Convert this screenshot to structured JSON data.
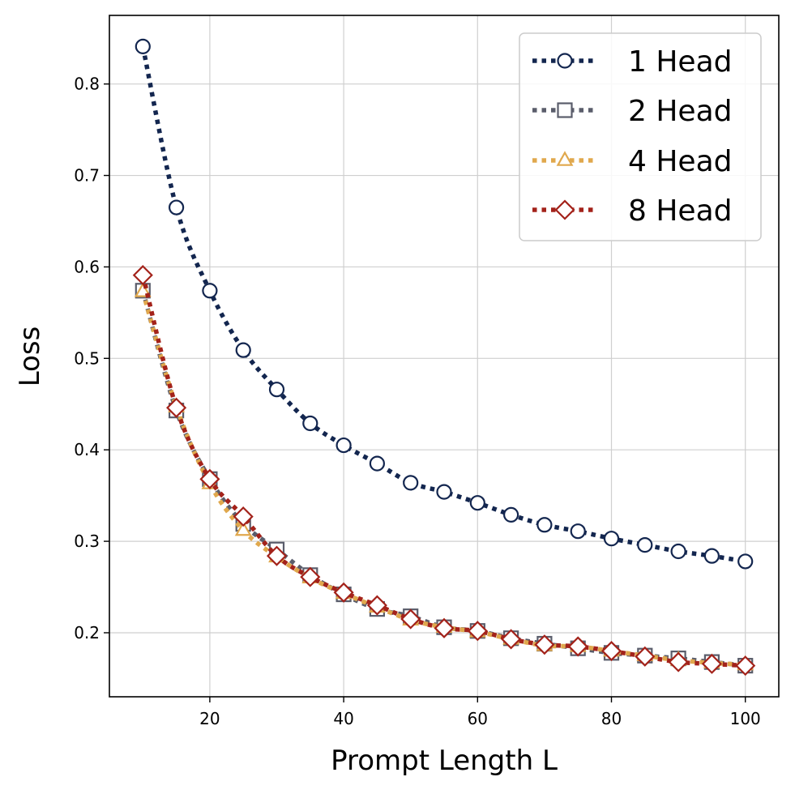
{
  "chart_data": {
    "type": "line",
    "xlabel": "Prompt Length L",
    "ylabel": "Loss",
    "xlim": [
      5,
      105
    ],
    "ylim": [
      0.13,
      0.875
    ],
    "xticks": [
      20,
      40,
      60,
      80,
      100
    ],
    "yticks": [
      0.2,
      0.3,
      0.4,
      0.5,
      0.6,
      0.7,
      0.8
    ],
    "grid": true,
    "legend_position": "top-right",
    "x": [
      10,
      15,
      20,
      25,
      30,
      35,
      40,
      45,
      50,
      55,
      60,
      65,
      70,
      75,
      80,
      85,
      90,
      95,
      100
    ],
    "series": [
      {
        "name": "1 Head",
        "color": "#13264f",
        "marker": "circle",
        "values": [
          0.841,
          0.665,
          0.574,
          0.509,
          0.466,
          0.429,
          0.405,
          0.385,
          0.364,
          0.354,
          0.342,
          0.329,
          0.318,
          0.311,
          0.303,
          0.296,
          0.289,
          0.284,
          0.278
        ]
      },
      {
        "name": "2 Head",
        "color": "#5a5d6b",
        "marker": "square",
        "values": [
          0.574,
          0.443,
          0.368,
          0.319,
          0.291,
          0.263,
          0.242,
          0.226,
          0.218,
          0.206,
          0.202,
          0.194,
          0.188,
          0.183,
          0.178,
          0.175,
          0.172,
          0.168,
          0.164
        ]
      },
      {
        "name": "4 Head",
        "color": "#e0a84d",
        "marker": "triangle",
        "values": [
          0.573,
          0.447,
          0.363,
          0.312,
          0.283,
          0.26,
          0.243,
          0.228,
          0.214,
          0.206,
          0.201,
          0.193,
          0.186,
          0.185,
          0.18,
          0.175,
          0.17,
          0.167,
          0.165
        ]
      },
      {
        "name": "8 Head",
        "color": "#a3221a",
        "marker": "diamond",
        "values": [
          0.591,
          0.446,
          0.368,
          0.327,
          0.284,
          0.261,
          0.244,
          0.23,
          0.215,
          0.205,
          0.202,
          0.193,
          0.187,
          0.185,
          0.18,
          0.174,
          0.168,
          0.166,
          0.164
        ]
      }
    ]
  }
}
